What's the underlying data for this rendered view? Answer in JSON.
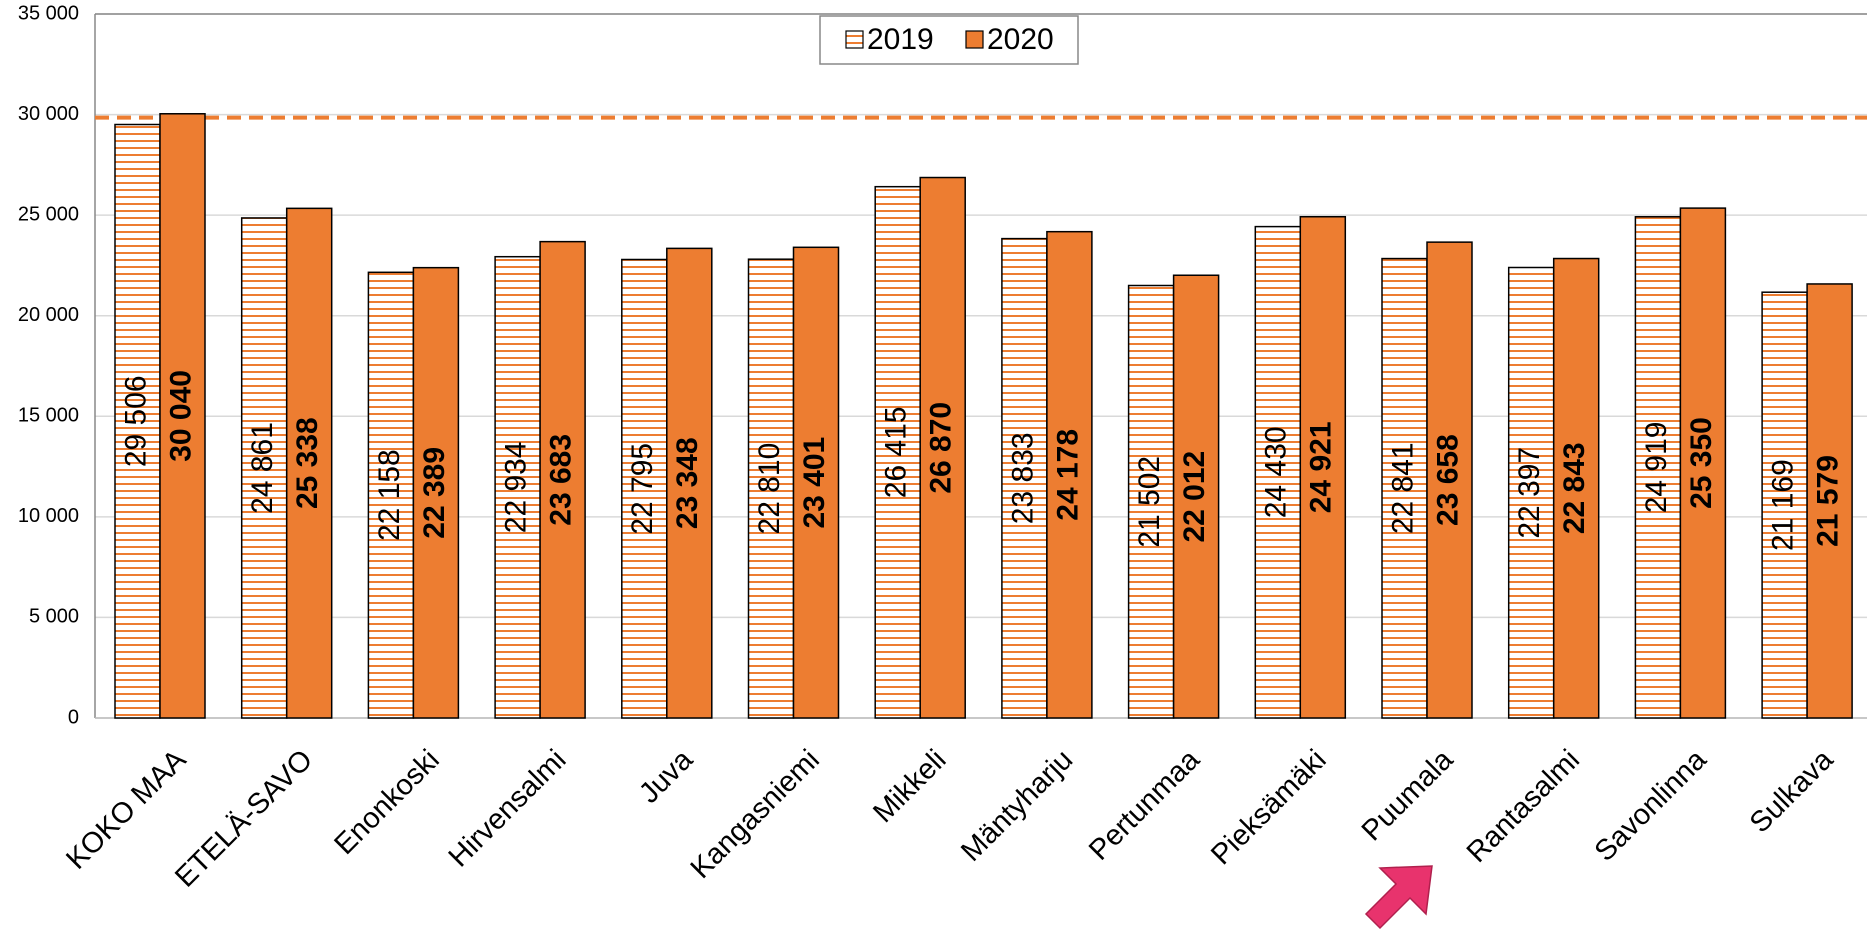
{
  "chart_data": {
    "type": "bar",
    "categories": [
      "KOKO MAA",
      "ETELÄ-SAVO",
      "Enonkoski",
      "Hirvensalmi",
      "Juva",
      "Kangasniemi",
      "Mikkeli",
      "Mäntyharju",
      "Pertunmaa",
      "Pieksämäki",
      "Puumala",
      "Rantasalmi",
      "Savonlinna",
      "Sulkava"
    ],
    "series": [
      {
        "name": "2019",
        "color": "#ed7d31",
        "values": [
          29506,
          24861,
          22158,
          22934,
          22795,
          22810,
          26415,
          23833,
          21502,
          24430,
          22841,
          22397,
          24919,
          21169
        ],
        "value_labels": [
          "29 506",
          "24 861",
          "22 158",
          "22 934",
          "22 795",
          "22 810",
          "26 415",
          "23 833",
          "21 502",
          "24 430",
          "22 841",
          "22 397",
          "24 919",
          "21 169"
        ]
      },
      {
        "name": "2020",
        "color": "#ed7d31",
        "values": [
          30040,
          25338,
          22389,
          23683,
          23348,
          23401,
          26870,
          24178,
          22012,
          24921,
          23658,
          22843,
          25350,
          21579
        ],
        "value_labels": [
          "30 040",
          "25 338",
          "22 389",
          "23 683",
          "23 348",
          "23 401",
          "26 870",
          "24 178",
          "22 012",
          "24 921",
          "23 658",
          "22 843",
          "25 350",
          "21 579"
        ]
      }
    ],
    "reference_value": 29850,
    "ylim": [
      0,
      35000
    ],
    "yticks": [
      0,
      {
        "value": 5000,
        "label": "5 000"
      },
      {
        "value": 10000,
        "label": "10 000"
      },
      {
        "value": 15000,
        "label": "15 000"
      },
      {
        "value": 20000,
        "label": "20 000"
      },
      {
        "value": 25000,
        "label": "25 000"
      },
      {
        "value": 30000,
        "label": "30 000"
      },
      {
        "value": 35000,
        "label": "35 000"
      }
    ],
    "grid": true,
    "legend": "top"
  }
}
